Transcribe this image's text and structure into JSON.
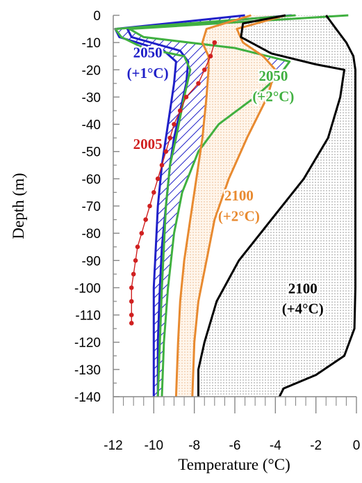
{
  "chart_data": {
    "type": "line",
    "title": "",
    "xlabel": "Temperature (°C)",
    "ylabel": "Depth (m)",
    "xlim": [
      -12,
      0
    ],
    "ylim": [
      -140,
      0
    ],
    "x_ticks": [
      -12,
      -10,
      -8,
      -6,
      -4,
      -2,
      0
    ],
    "y_ticks": [
      0,
      -10,
      -20,
      -30,
      -40,
      -50,
      -60,
      -70,
      -80,
      -90,
      -100,
      -110,
      -120,
      -130,
      -140
    ],
    "grid": false,
    "legend": "none",
    "series": [
      {
        "color": "#d02020",
        "style": "line-with-markers",
        "points": [
          [
            -7,
            -10
          ],
          [
            -7.2,
            -15
          ],
          [
            -7.5,
            -20
          ],
          [
            -7.8,
            -25
          ],
          [
            -8.4,
            -30
          ],
          [
            -8.7,
            -35
          ],
          [
            -9,
            -40
          ],
          [
            -9.2,
            -45
          ],
          [
            -9.4,
            -50
          ],
          [
            -9.6,
            -55
          ],
          [
            -9.8,
            -60
          ],
          [
            -10,
            -65
          ],
          [
            -10.2,
            -70
          ],
          [
            -10.4,
            -75
          ],
          [
            -10.6,
            -80
          ],
          [
            -10.8,
            -85
          ],
          [
            -10.9,
            -90
          ],
          [
            -11,
            -95
          ],
          [
            -11.1,
            -100
          ],
          [
            -11.1,
            -105
          ],
          [
            -11.1,
            -110
          ],
          [
            -11.1,
            -113
          ]
        ]
      },
      {
        "color": "#2020c8",
        "style": "envelope",
        "fill": "hatch",
        "left": [
          [
            -5.5,
            0
          ],
          [
            -11.9,
            -5
          ],
          [
            -11.7,
            -8
          ],
          [
            -9.5,
            -13
          ],
          [
            -8.9,
            -17
          ],
          [
            -9.0,
            -25
          ],
          [
            -9.2,
            -35
          ],
          [
            -9.4,
            -45
          ],
          [
            -9.6,
            -55
          ],
          [
            -9.8,
            -70
          ],
          [
            -9.9,
            -85
          ],
          [
            -10.0,
            -100
          ],
          [
            -10.0,
            -120
          ],
          [
            -10.0,
            -140
          ]
        ],
        "right": [
          [
            -3.2,
            0
          ],
          [
            -11.3,
            -5
          ],
          [
            -11.1,
            -8
          ],
          [
            -8.7,
            -13
          ],
          [
            -8.3,
            -17
          ],
          [
            -8.4,
            -25
          ],
          [
            -8.7,
            -35
          ],
          [
            -9.0,
            -45
          ],
          [
            -9.2,
            -55
          ],
          [
            -9.4,
            -70
          ],
          [
            -9.6,
            -85
          ],
          [
            -9.7,
            -100
          ],
          [
            -9.8,
            -120
          ],
          [
            -9.8,
            -140
          ]
        ]
      },
      {
        "color": "#40b040",
        "style": "envelope",
        "fill": "hatch",
        "left": [
          [
            -3.0,
            0
          ],
          [
            -11.9,
            -5
          ],
          [
            -11.6,
            -8
          ],
          [
            -10.5,
            -12
          ],
          [
            -8.5,
            -15
          ],
          [
            -8.2,
            -20
          ],
          [
            -8.5,
            -30
          ],
          [
            -8.9,
            -45
          ],
          [
            -9.2,
            -55
          ],
          [
            -9.4,
            -70
          ],
          [
            -9.5,
            -85
          ],
          [
            -9.6,
            -100
          ],
          [
            -9.7,
            -120
          ],
          [
            -9.8,
            -140
          ]
        ],
        "right": [
          [
            -0.4,
            0
          ],
          [
            -11.2,
            -5
          ],
          [
            -10.5,
            -8
          ],
          [
            -6.0,
            -12
          ],
          [
            -3.3,
            -17
          ],
          [
            -3.8,
            -22
          ],
          [
            -5.0,
            -30
          ],
          [
            -6.8,
            -40
          ],
          [
            -7.8,
            -50
          ],
          [
            -8.6,
            -65
          ],
          [
            -9.0,
            -80
          ],
          [
            -9.3,
            -100
          ],
          [
            -9.5,
            -120
          ],
          [
            -9.6,
            -140
          ]
        ]
      },
      {
        "color": "#e88a30",
        "style": "envelope",
        "fill": "dots",
        "left": [
          [
            -5.2,
            0
          ],
          [
            -7.4,
            -5
          ],
          [
            -7.6,
            -10
          ],
          [
            -7.3,
            -15
          ],
          [
            -7.3,
            -20
          ],
          [
            -7.4,
            -30
          ],
          [
            -7.6,
            -45
          ],
          [
            -7.9,
            -60
          ],
          [
            -8.2,
            -75
          ],
          [
            -8.5,
            -90
          ],
          [
            -8.7,
            -105
          ],
          [
            -8.8,
            -120
          ],
          [
            -8.9,
            -140
          ]
        ],
        "right": [
          [
            -3.5,
            0
          ],
          [
            -5.9,
            -5
          ],
          [
            -5.6,
            -10
          ],
          [
            -4.6,
            -15
          ],
          [
            -4.0,
            -20
          ],
          [
            -4.4,
            -30
          ],
          [
            -5.4,
            -45
          ],
          [
            -6.3,
            -60
          ],
          [
            -7.0,
            -75
          ],
          [
            -7.4,
            -90
          ],
          [
            -7.8,
            -105
          ],
          [
            -8.0,
            -120
          ],
          [
            -8.1,
            -140
          ]
        ]
      },
      {
        "color": "#000000",
        "style": "envelope",
        "fill": "dots",
        "left": [
          [
            -3.5,
            0
          ],
          [
            -5.6,
            -3
          ],
          [
            -5.7,
            -8
          ],
          [
            -4.2,
            -14
          ],
          [
            -2.0,
            -18
          ],
          [
            -0.6,
            -20
          ],
          [
            -0.8,
            -30
          ],
          [
            -1.4,
            -45
          ],
          [
            -2.6,
            -60
          ],
          [
            -4.2,
            -75
          ],
          [
            -5.8,
            -90
          ],
          [
            -6.9,
            -105
          ],
          [
            -7.5,
            -120
          ],
          [
            -7.8,
            -130
          ],
          [
            -7.8,
            -140
          ]
        ],
        "right": [
          [
            -1.5,
            0
          ],
          [
            -1.0,
            -5
          ],
          [
            -0.5,
            -10
          ],
          [
            -0.15,
            -15
          ],
          [
            -0.05,
            -20
          ],
          [
            -0.05,
            -60
          ],
          [
            -0.05,
            -100
          ],
          [
            -0.1,
            -115
          ],
          [
            -0.6,
            -125
          ],
          [
            -2.0,
            -132
          ],
          [
            -3.6,
            -137
          ],
          [
            -3.8,
            -140
          ]
        ]
      }
    ],
    "annotations": [
      {
        "text": "2050",
        "color": "#2020c8",
        "x": -10.3,
        "y": -15.5
      },
      {
        "text": "(+1°C)",
        "color": "#2020c8",
        "x": -10.3,
        "y": -23
      },
      {
        "text": "2050",
        "color": "#40b040",
        "x": -4.1,
        "y": -24
      },
      {
        "text": "(+2°C)",
        "color": "#40b040",
        "x": -4.1,
        "y": -31.5
      },
      {
        "text": "2005",
        "color": "#d02020",
        "x": -10.3,
        "y": -49
      },
      {
        "text": "2100",
        "color": "#e88a30",
        "x": -5.8,
        "y": -68
      },
      {
        "text": "(+2°C)",
        "color": "#e88a30",
        "x": -5.8,
        "y": -75.5
      },
      {
        "text": "2100",
        "color": "#000000",
        "x": -2.65,
        "y": -102
      },
      {
        "text": "(+4°C)",
        "color": "#000000",
        "x": -2.65,
        "y": -109.5
      }
    ]
  }
}
